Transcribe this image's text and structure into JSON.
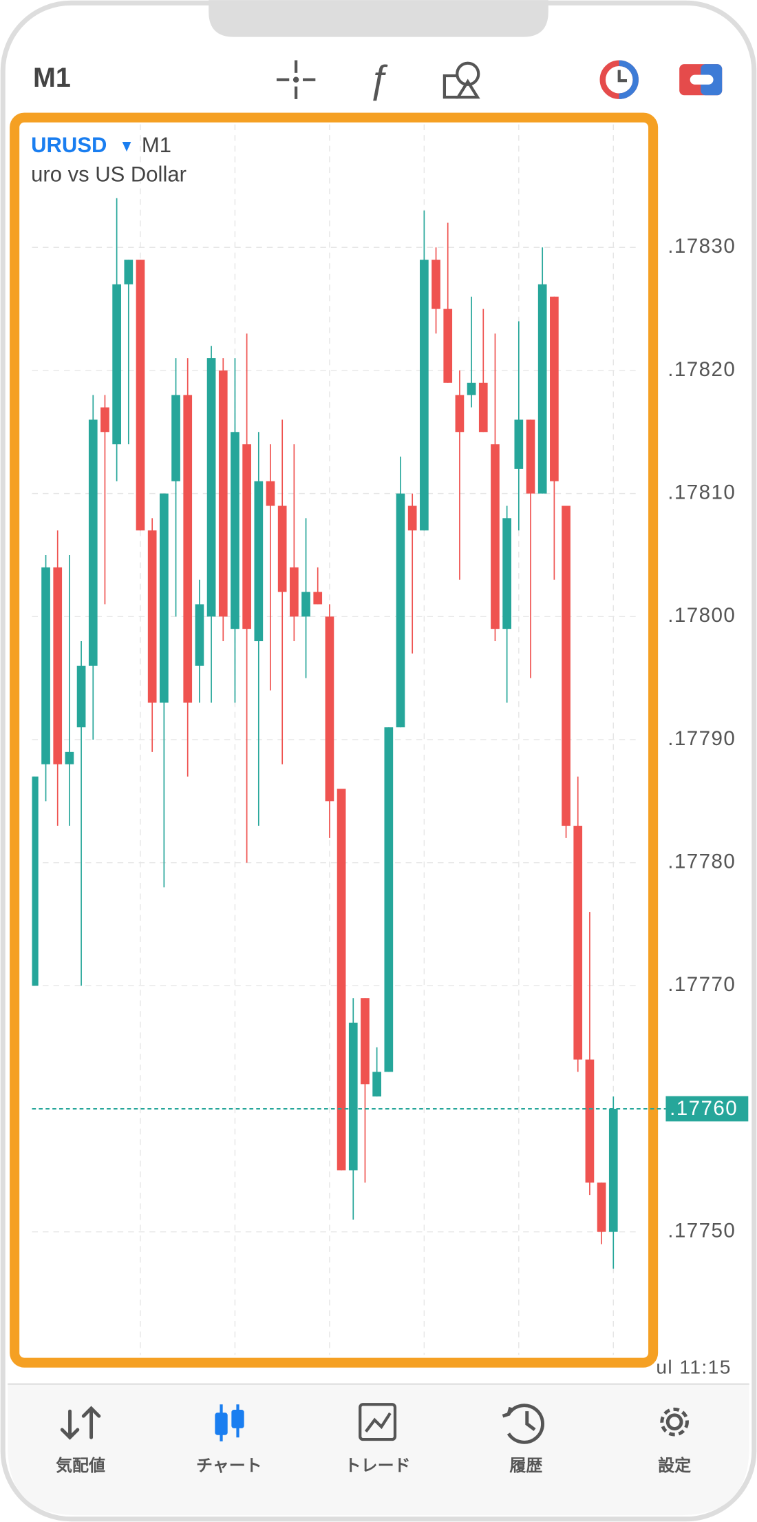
{
  "toolbar": {
    "timeframe": "M1"
  },
  "chart_data": {
    "type": "candlestick",
    "symbol": "URUSD",
    "timeframe": "M1",
    "description": "uro vs US Dollar",
    "open": [
      1.1777,
      1.17788,
      1.17804,
      1.17788,
      1.17791,
      1.17796,
      1.17817,
      1.17814,
      1.17827,
      1.17829,
      1.17807,
      1.17793,
      1.17811,
      1.17818,
      1.17796,
      1.178,
      1.1782,
      1.17799,
      1.17814,
      1.17798,
      1.17811,
      1.17809,
      1.17804,
      1.178,
      1.17802,
      1.178,
      1.17786,
      1.17755,
      1.17769,
      1.17761,
      1.17763,
      1.17791,
      1.17809,
      1.17807,
      1.17829,
      1.17825,
      1.17818,
      1.17818,
      1.17819,
      1.17814,
      1.17799,
      1.17812,
      1.17816,
      1.1781,
      1.17826,
      1.17809,
      1.17783,
      1.17764,
      1.17754,
      1.1775
    ],
    "high": [
      1.17787,
      1.17805,
      1.17807,
      1.17805,
      1.17798,
      1.17818,
      1.17818,
      1.17834,
      1.17829,
      1.17829,
      1.17808,
      1.1781,
      1.17821,
      1.17821,
      1.17803,
      1.17822,
      1.17821,
      1.17821,
      1.17823,
      1.17815,
      1.17814,
      1.17816,
      1.17814,
      1.17808,
      1.17804,
      1.17801,
      1.17786,
      1.17769,
      1.17769,
      1.17765,
      1.17791,
      1.17813,
      1.1781,
      1.17833,
      1.1783,
      1.17832,
      1.1782,
      1.17826,
      1.17825,
      1.17823,
      1.17809,
      1.17824,
      1.17816,
      1.1783,
      1.17826,
      1.17809,
      1.17787,
      1.17776,
      1.17754,
      1.17761
    ],
    "low": [
      1.1777,
      1.17785,
      1.17783,
      1.17783,
      1.1777,
      1.1779,
      1.17801,
      1.17811,
      1.17814,
      1.17807,
      1.17789,
      1.17778,
      1.178,
      1.17787,
      1.17793,
      1.17793,
      1.17798,
      1.17793,
      1.1778,
      1.17783,
      1.17794,
      1.17788,
      1.17798,
      1.17795,
      1.17801,
      1.17782,
      1.17755,
      1.17751,
      1.17754,
      1.17761,
      1.17763,
      1.17791,
      1.17797,
      1.17807,
      1.17823,
      1.17819,
      1.17803,
      1.17817,
      1.17815,
      1.17798,
      1.17793,
      1.17807,
      1.17795,
      1.1781,
      1.17803,
      1.17782,
      1.17763,
      1.17753,
      1.17749,
      1.17747
    ],
    "close": [
      1.17787,
      1.17804,
      1.17788,
      1.17789,
      1.17796,
      1.17816,
      1.17815,
      1.17827,
      1.17829,
      1.17807,
      1.17793,
      1.1781,
      1.17818,
      1.17793,
      1.17801,
      1.17821,
      1.178,
      1.17815,
      1.17799,
      1.17811,
      1.17809,
      1.17802,
      1.178,
      1.17802,
      1.17801,
      1.17785,
      1.17755,
      1.17767,
      1.17762,
      1.17763,
      1.17791,
      1.1781,
      1.17807,
      1.17829,
      1.17825,
      1.17819,
      1.17815,
      1.17819,
      1.17815,
      1.17799,
      1.17808,
      1.17816,
      1.1781,
      1.17827,
      1.17811,
      1.17783,
      1.17764,
      1.17754,
      1.1775,
      1.1776
    ],
    "up_color": "#26a69a",
    "down_color": "#ef5350",
    "ylim": [
      1.1774,
      1.1784
    ],
    "yticks": [
      {
        "value": 1.1783,
        "label": ".17830"
      },
      {
        "value": 1.1782,
        "label": ".17820"
      },
      {
        "value": 1.1781,
        "label": ".17810"
      },
      {
        "value": 1.178,
        "label": ".17800"
      },
      {
        "value": 1.1779,
        "label": ".17790"
      },
      {
        "value": 1.1778,
        "label": ".17780"
      },
      {
        "value": 1.1777,
        "label": ".17770"
      },
      {
        "value": 1.1775,
        "label": ".17750"
      }
    ],
    "last_price": {
      "value": 1.1776,
      "label": ".17760"
    },
    "x_label": "ul 11:15",
    "grid": true
  },
  "tabs": [
    {
      "label": "気配値"
    },
    {
      "label": "チャート"
    },
    {
      "label": "トレード"
    },
    {
      "label": "履歴"
    },
    {
      "label": "設定"
    }
  ],
  "active_tab": 1
}
